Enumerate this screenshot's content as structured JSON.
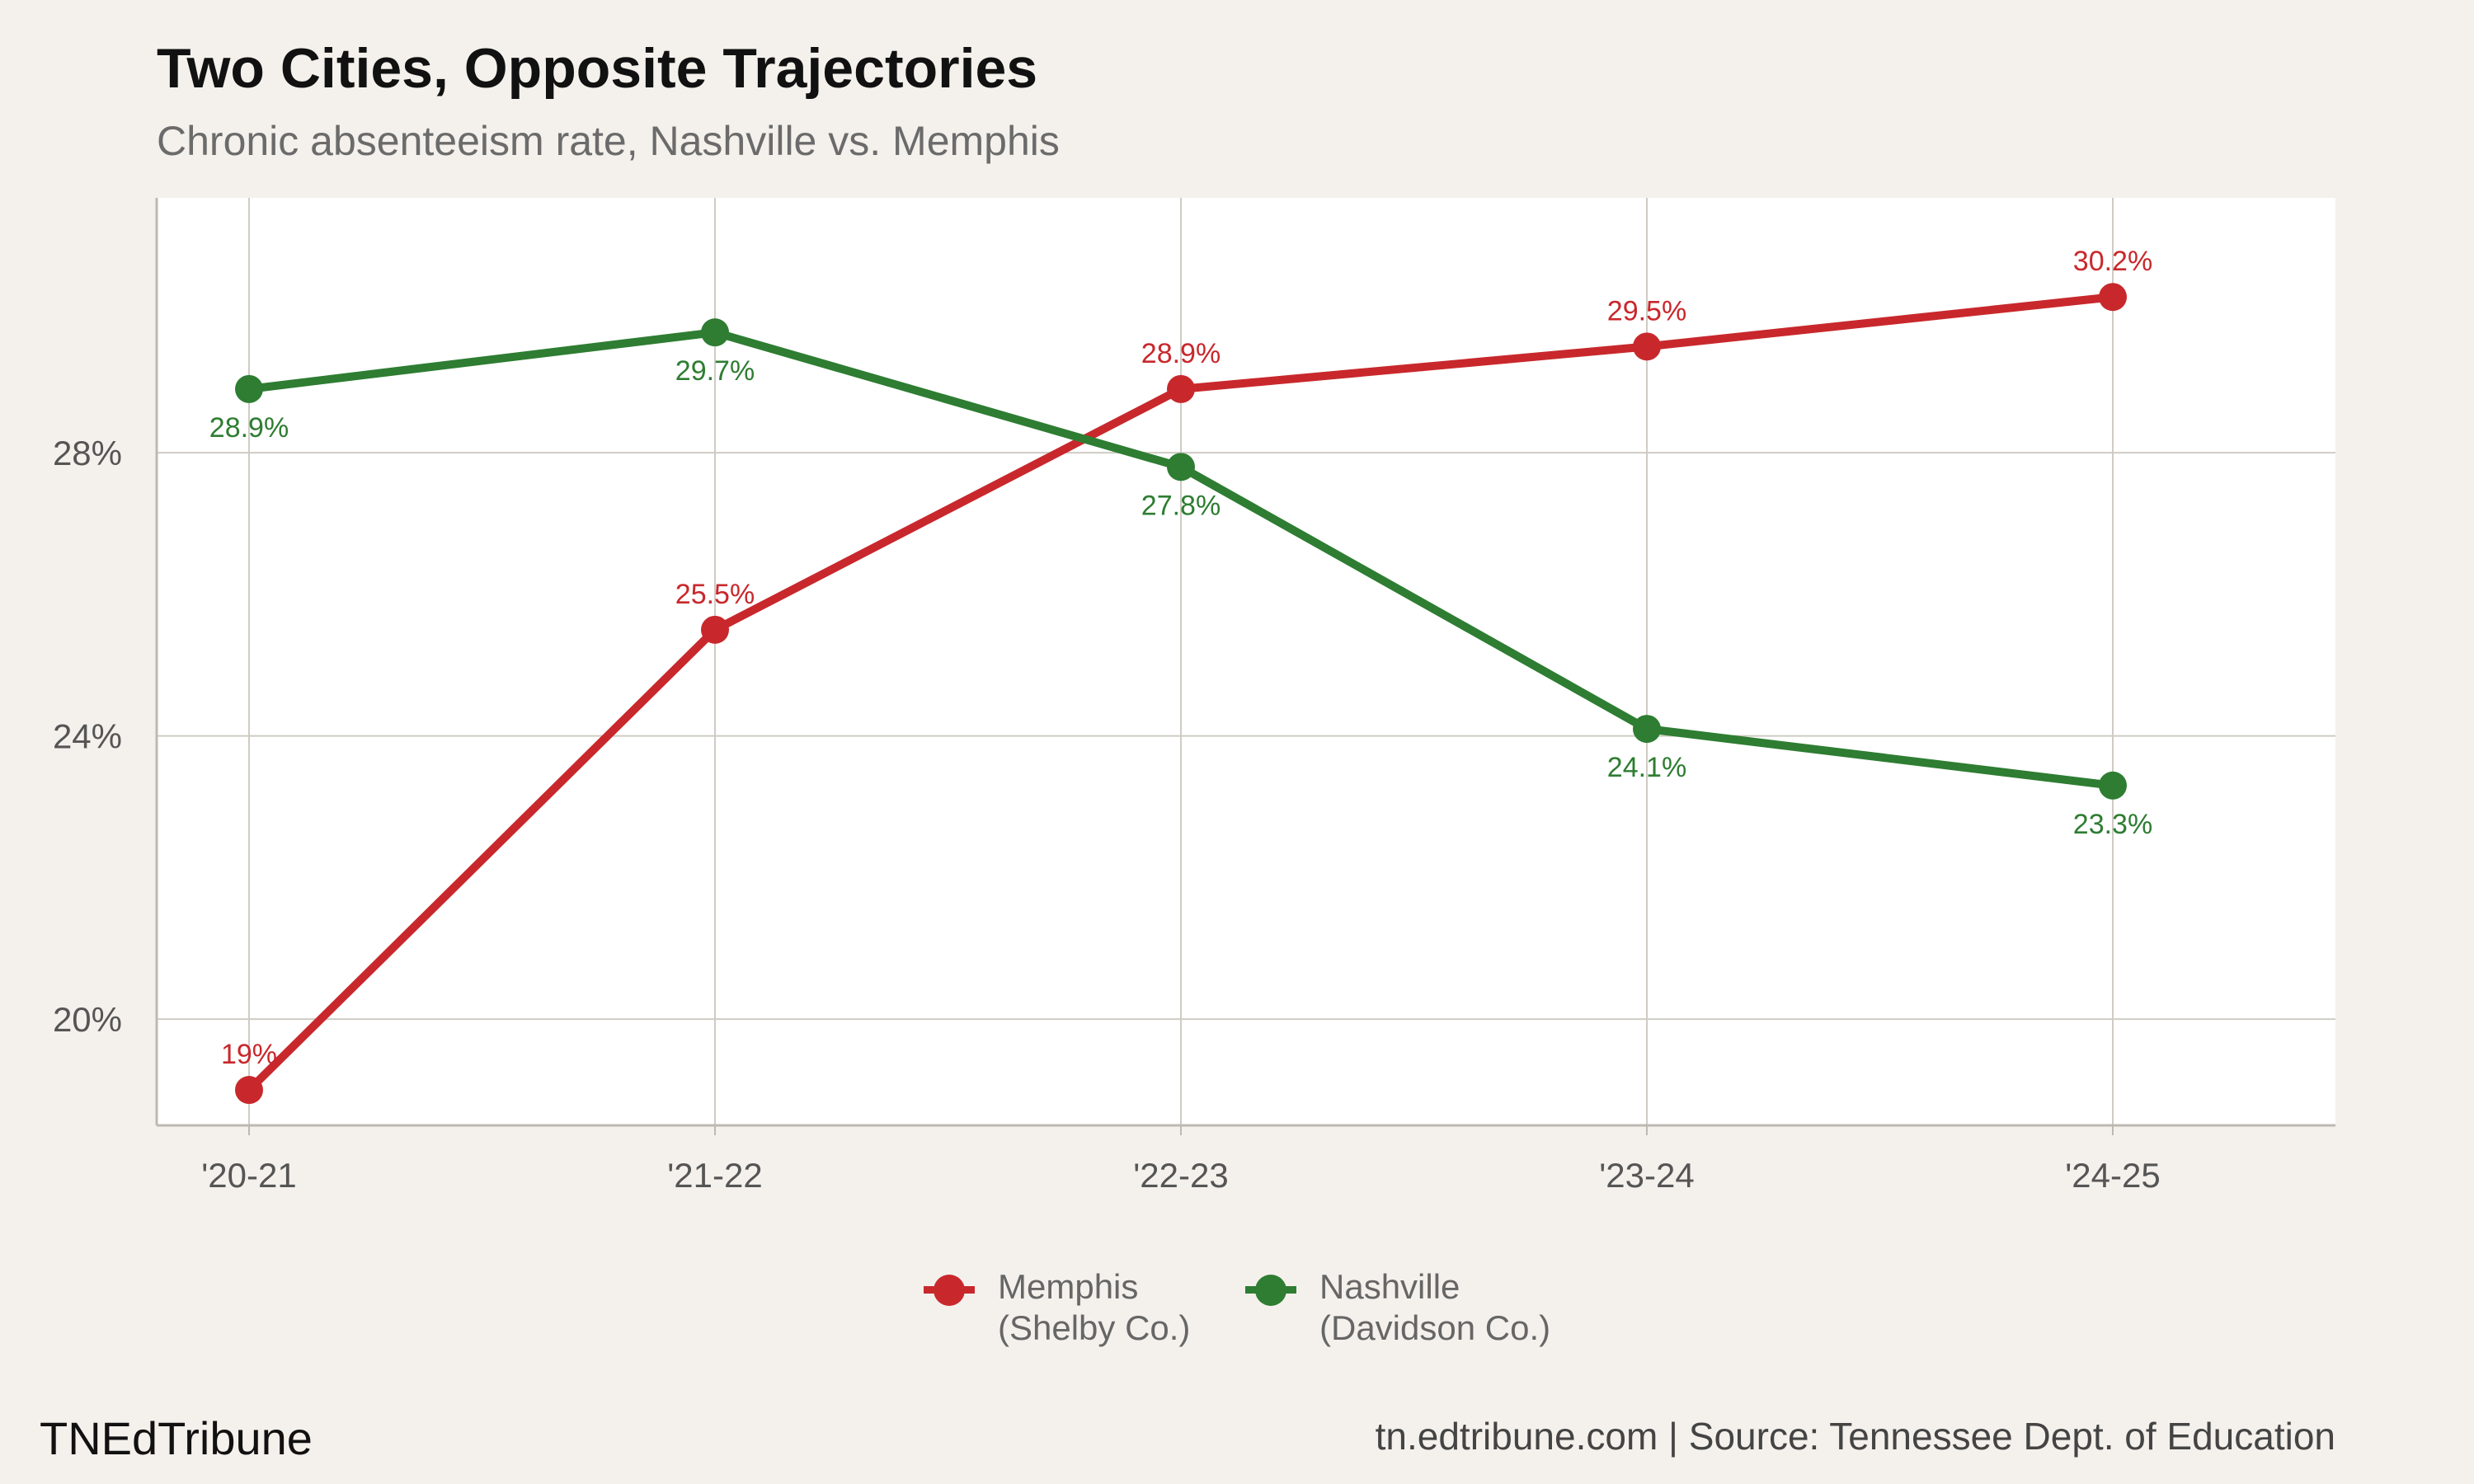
{
  "header": {
    "title": "Two Cities, Opposite Trajectories",
    "subtitle": "Chronic absenteeism rate, Nashville vs. Memphis"
  },
  "footer": {
    "brand": "TNEdTribune",
    "source": "tn.edtribune.com | Source: Tennessee Dept. of Education"
  },
  "legend": {
    "memphis_label": "Memphis\n(Shelby Co.)",
    "nashville_label": "Nashville\n(Davidson Co.)",
    "placement": "bottom-center"
  },
  "colors": {
    "memphis": "#c8282c",
    "nashville": "#2e7d32",
    "background": "#f4f1ec",
    "panel": "#ffffff",
    "grid": "#cfcbc4"
  },
  "chart_data": {
    "type": "line",
    "title": "Two Cities, Opposite Trajectories",
    "subtitle": "Chronic absenteeism rate, Nashville vs. Memphis",
    "xlabel": "",
    "ylabel": "",
    "categories": [
      "'20-21",
      "'21-22",
      "'22-23",
      "'23-24",
      "'24-25"
    ],
    "yticks": [
      20,
      24,
      28
    ],
    "ytick_labels": [
      "20%",
      "24%",
      "28%"
    ],
    "ylim": [
      18.5,
      31.6
    ],
    "grid": true,
    "series": [
      {
        "name": "Memphis\n(Shelby Co.)",
        "values": [
          19,
          25.5,
          28.9,
          29.5,
          30.2
        ],
        "labels": [
          "19%",
          "25.5%",
          "28.9%",
          "29.5%",
          "30.2%"
        ],
        "label_position": "above"
      },
      {
        "name": "Nashville\n(Davidson Co.)",
        "values": [
          28.9,
          29.7,
          27.8,
          24.1,
          23.3
        ],
        "labels": [
          "28.9%",
          "29.7%",
          "27.8%",
          "24.1%",
          "23.3%"
        ],
        "label_position": "below"
      }
    ]
  }
}
